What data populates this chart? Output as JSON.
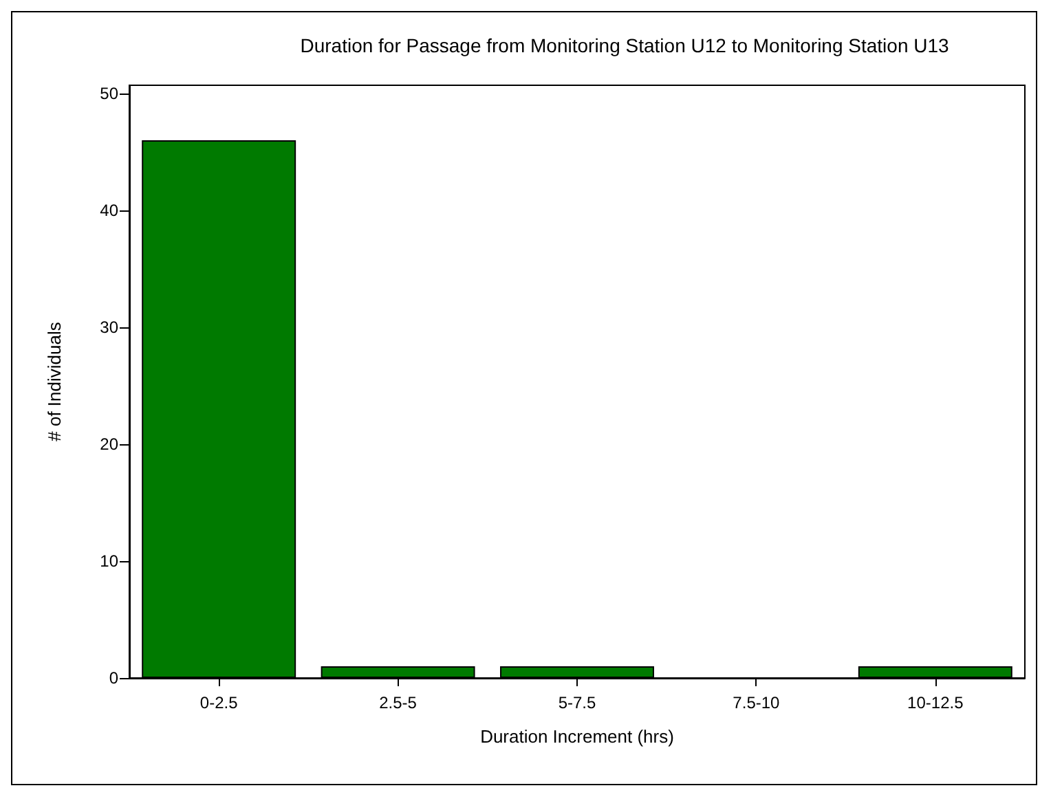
{
  "chart_data": {
    "type": "bar",
    "title": "Duration for Passage from Monitoring Station U12 to Monitoring Station U13",
    "xlabel": "Duration Increment (hrs)",
    "ylabel": "# of Individuals",
    "categories": [
      "0-2.5",
      "2.5-5",
      "5-7.5",
      "7.5-10",
      "10-12.5"
    ],
    "values": [
      46,
      1,
      1,
      0,
      1
    ],
    "color": "#007a00",
    "ylim": [
      0,
      50.7
    ],
    "yticks": [
      0,
      10,
      20,
      30,
      40,
      50
    ],
    "grid": false
  }
}
